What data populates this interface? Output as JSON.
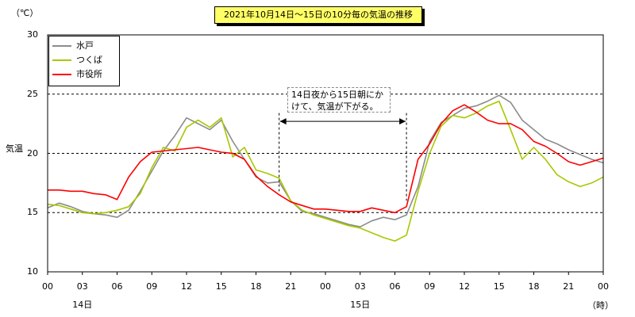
{
  "chart_data": {
    "type": "line",
    "title": "2021年10月14日～15日の10分毎の気温の推移",
    "y_unit_top": "（℃）",
    "ylabel": "気温",
    "xlabel_unit": "（時）",
    "ylim": [
      10,
      30
    ],
    "yticks": [
      "30",
      "25",
      "20",
      "15",
      "10"
    ],
    "xlim": [
      0,
      48
    ],
    "xticks": [
      "00",
      "03",
      "06",
      "09",
      "12",
      "15",
      "18",
      "21",
      "00",
      "03",
      "06",
      "09",
      "12",
      "15",
      "18",
      "21",
      "00"
    ],
    "day_labels": [
      {
        "label": "14日",
        "hour": 3
      },
      {
        "label": "15日",
        "hour": 27
      }
    ],
    "dashed_grid_at": [
      15,
      20,
      25
    ],
    "annotation": {
      "lines": [
        "14日夜から15日朝にか",
        "けて、気温が下がる。"
      ],
      "arrow_from_hour": 20,
      "arrow_to_hour": 31
    },
    "legend_position": "top-left",
    "series": [
      {
        "name": "水戸",
        "color": "#8c8c8c",
        "x": [
          0,
          1,
          2,
          3,
          4,
          5,
          6,
          7,
          8,
          9,
          10,
          11,
          12,
          13,
          14,
          15,
          16,
          17,
          18,
          19,
          20,
          21,
          22,
          23,
          24,
          25,
          26,
          27,
          28,
          29,
          30,
          31,
          32,
          33,
          34,
          35,
          36,
          37,
          38,
          39,
          40,
          41,
          42,
          43,
          44,
          45,
          46,
          47,
          48
        ],
        "y": [
          15.4,
          15.8,
          15.5,
          15.1,
          14.9,
          14.8,
          14.6,
          15.2,
          16.8,
          18.5,
          20.2,
          21.5,
          23.0,
          22.5,
          22.0,
          22.8,
          21.0,
          19.5,
          18.0,
          17.5,
          17.6,
          16.0,
          15.1,
          14.9,
          14.6,
          14.3,
          14.0,
          13.8,
          14.3,
          14.6,
          14.4,
          14.8,
          17.2,
          21.0,
          22.6,
          23.2,
          23.8,
          24.0,
          24.4,
          24.9,
          24.3,
          22.8,
          22.0,
          21.2,
          20.8,
          20.3,
          19.9,
          19.5,
          19.2
        ]
      },
      {
        "name": "つくば",
        "color": "#a8c800",
        "x": [
          0,
          1,
          2,
          3,
          4,
          5,
          6,
          7,
          8,
          9,
          10,
          11,
          12,
          13,
          14,
          15,
          16,
          17,
          18,
          19,
          20,
          21,
          22,
          23,
          24,
          25,
          26,
          27,
          28,
          29,
          30,
          31,
          32,
          33,
          34,
          35,
          36,
          37,
          38,
          39,
          40,
          41,
          42,
          43,
          44,
          45,
          46,
          47,
          48
        ],
        "y": [
          15.7,
          15.6,
          15.3,
          15.0,
          14.9,
          15.0,
          15.2,
          15.5,
          16.6,
          18.8,
          20.5,
          20.2,
          22.2,
          22.8,
          22.2,
          23.0,
          19.7,
          20.5,
          18.6,
          18.3,
          17.9,
          16.0,
          15.2,
          14.8,
          14.5,
          14.2,
          13.9,
          13.7,
          13.3,
          12.9,
          12.6,
          13.1,
          16.8,
          20.0,
          22.3,
          23.2,
          23.0,
          23.4,
          24.0,
          24.4,
          22.0,
          19.5,
          20.5,
          19.5,
          18.2,
          17.6,
          17.2,
          17.5,
          18.0
        ]
      },
      {
        "name": "市役所",
        "color": "#ff0000",
        "x": [
          0,
          1,
          2,
          3,
          4,
          5,
          6,
          7,
          8,
          9,
          10,
          11,
          12,
          13,
          14,
          15,
          16,
          17,
          18,
          19,
          20,
          21,
          22,
          23,
          24,
          25,
          26,
          27,
          28,
          29,
          30,
          31,
          32,
          33,
          34,
          35,
          36,
          37,
          38,
          39,
          40,
          41,
          42,
          43,
          44,
          45,
          46,
          47,
          48
        ],
        "y": [
          16.9,
          16.9,
          16.8,
          16.8,
          16.6,
          16.5,
          16.1,
          18.0,
          19.3,
          20.1,
          20.2,
          20.3,
          20.4,
          20.5,
          20.3,
          20.1,
          20.0,
          19.5,
          18.1,
          17.2,
          16.5,
          15.9,
          15.6,
          15.3,
          15.3,
          15.2,
          15.1,
          15.1,
          15.4,
          15.2,
          15.0,
          15.5,
          19.5,
          20.8,
          22.5,
          23.6,
          24.1,
          23.5,
          22.8,
          22.5,
          22.5,
          22.0,
          21.0,
          20.6,
          20.0,
          19.3,
          19.0,
          19.3,
          19.6
        ]
      }
    ]
  }
}
